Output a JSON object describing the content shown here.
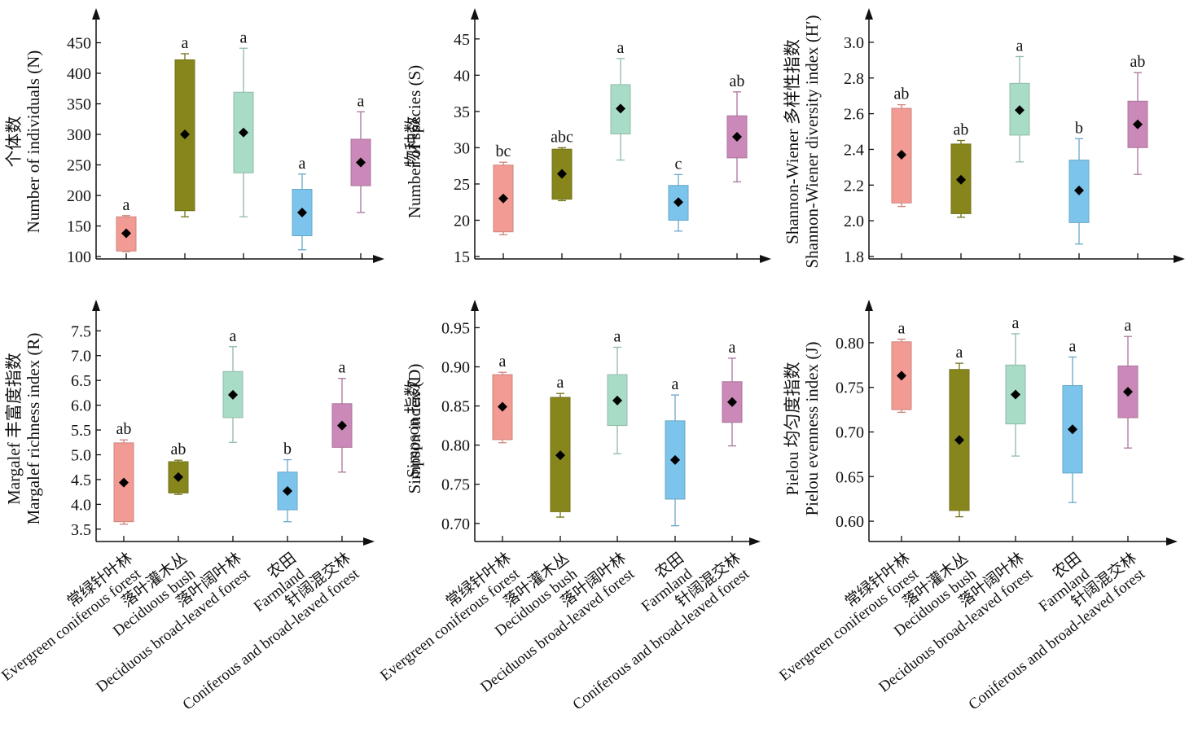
{
  "colors": {
    "Evergreen coniferous forest": "#f29b94",
    "Deciduous bush": "#86861c",
    "Deciduous broad-leaved forest": "#a9dcc6",
    "Farmland": "#7cc4eb",
    "Coniferous and broad-leaved forest": "#ca89b8"
  },
  "categories": [
    {
      "cn": "常绿针叶林",
      "en": "Evergreen coniferous forest"
    },
    {
      "cn": "落叶灌木丛",
      "en": "Deciduous bush"
    },
    {
      "cn": "落叶阔叶林",
      "en": "Deciduous broad-leaved forest"
    },
    {
      "cn": "农田",
      "en": "Farmland"
    },
    {
      "cn": "针阔混交林",
      "en": "Coniferous and broad-leaved forest"
    }
  ],
  "chart_data": [
    {
      "type": "box",
      "panel": "individuals",
      "ylabel_cn": "个体数",
      "ylabel_en": "Number of individuals (N)",
      "yticks": [
        "100",
        "150",
        "200",
        "250",
        "300",
        "350",
        "400",
        "450"
      ],
      "ylim": [
        100,
        480
      ],
      "boxes": [
        {
          "min": 108,
          "q1": 109,
          "q3": 165,
          "max": 167,
          "mean": 138,
          "sig": "a"
        },
        {
          "min": 165,
          "q1": 175,
          "q3": 422,
          "max": 432,
          "mean": 300,
          "sig": "a"
        },
        {
          "min": 165,
          "q1": 237,
          "q3": 369,
          "max": 441,
          "mean": 303,
          "sig": "a"
        },
        {
          "min": 111,
          "q1": 134,
          "q3": 210,
          "max": 235,
          "mean": 172,
          "sig": "a"
        },
        {
          "min": 172,
          "q1": 216,
          "q3": 292,
          "max": 337,
          "mean": 254,
          "sig": "a"
        }
      ]
    },
    {
      "type": "box",
      "panel": "species",
      "ylabel_cn": "物种数",
      "ylabel_en": "Number of species (S)",
      "yticks": [
        "15",
        "20",
        "25",
        "30",
        "35",
        "40",
        "45"
      ],
      "ylim": [
        15,
        47
      ],
      "boxes": [
        {
          "min": 18.0,
          "q1": 18.4,
          "q3": 27.6,
          "max": 28.0,
          "mean": 23.0,
          "sig": "bc"
        },
        {
          "min": 22.7,
          "q1": 22.9,
          "q3": 29.8,
          "max": 30.0,
          "mean": 26.4,
          "sig": "abc"
        },
        {
          "min": 28.3,
          "q1": 31.9,
          "q3": 38.7,
          "max": 42.3,
          "mean": 35.4,
          "sig": "a"
        },
        {
          "min": 18.5,
          "q1": 20.0,
          "q3": 24.8,
          "max": 26.3,
          "mean": 22.5,
          "sig": "c"
        },
        {
          "min": 25.3,
          "q1": 28.6,
          "q3": 34.4,
          "max": 37.7,
          "mean": 31.5,
          "sig": "ab"
        }
      ]
    },
    {
      "type": "box",
      "panel": "shannon",
      "ylabel_cn": "Shannon-Wiener 多样性指数",
      "ylabel_en": "Shannon-Wiener diversity index (H′)",
      "yticks": [
        "1.8",
        "2.0",
        "2.2",
        "2.4",
        "2.6",
        "2.8",
        "3.0"
      ],
      "ylim": [
        1.8,
        3.1
      ],
      "boxes": [
        {
          "min": 2.08,
          "q1": 2.1,
          "q3": 2.63,
          "max": 2.65,
          "mean": 2.37,
          "sig": "ab"
        },
        {
          "min": 2.02,
          "q1": 2.04,
          "q3": 2.43,
          "max": 2.45,
          "mean": 2.23,
          "sig": "ab"
        },
        {
          "min": 2.33,
          "q1": 2.48,
          "q3": 2.77,
          "max": 2.92,
          "mean": 2.62,
          "sig": "a"
        },
        {
          "min": 1.87,
          "q1": 1.99,
          "q3": 2.34,
          "max": 2.46,
          "mean": 2.17,
          "sig": "b"
        },
        {
          "min": 2.26,
          "q1": 2.41,
          "q3": 2.67,
          "max": 2.83,
          "mean": 2.54,
          "sig": "ab"
        }
      ]
    },
    {
      "type": "box",
      "panel": "margalef",
      "ylabel_cn": "Margalef 丰富度指数",
      "ylabel_en": "Margalef richness index (R)",
      "yticks": [
        "3.5",
        "4.0",
        "4.5",
        "5.0",
        "5.5",
        "6.0",
        "6.5",
        "7.0",
        "7.5"
      ],
      "ylim": [
        3.3,
        7.8
      ],
      "boxes": [
        {
          "min": 3.6,
          "q1": 3.65,
          "q3": 5.24,
          "max": 5.3,
          "mean": 4.44,
          "sig": "ab"
        },
        {
          "min": 4.2,
          "q1": 4.23,
          "q3": 4.86,
          "max": 4.89,
          "mean": 4.55,
          "sig": "ab"
        },
        {
          "min": 5.25,
          "q1": 5.75,
          "q3": 6.68,
          "max": 7.18,
          "mean": 6.21,
          "sig": "a"
        },
        {
          "min": 3.65,
          "q1": 3.89,
          "q3": 4.65,
          "max": 4.9,
          "mean": 4.27,
          "sig": "b"
        },
        {
          "min": 4.65,
          "q1": 5.15,
          "q3": 6.03,
          "max": 6.54,
          "mean": 5.59,
          "sig": "a"
        }
      ]
    },
    {
      "type": "box",
      "panel": "simpson",
      "ylabel_cn": "Simpson 指数",
      "ylabel_en": "Simpson index (D)",
      "yticks": [
        "0.70",
        "0.75",
        "0.80",
        "0.85",
        "0.90",
        "0.95"
      ],
      "ylim": [
        0.68,
        0.965
      ],
      "boxes": [
        {
          "min": 0.803,
          "q1": 0.807,
          "q3": 0.89,
          "max": 0.893,
          "mean": 0.849,
          "sig": "a"
        },
        {
          "min": 0.708,
          "q1": 0.715,
          "q3": 0.861,
          "max": 0.866,
          "mean": 0.787,
          "sig": "a"
        },
        {
          "min": 0.789,
          "q1": 0.825,
          "q3": 0.89,
          "max": 0.925,
          "mean": 0.857,
          "sig": "a"
        },
        {
          "min": 0.697,
          "q1": 0.731,
          "q3": 0.831,
          "max": 0.864,
          "mean": 0.781,
          "sig": "a"
        },
        {
          "min": 0.799,
          "q1": 0.829,
          "q3": 0.881,
          "max": 0.911,
          "mean": 0.855,
          "sig": "a"
        }
      ]
    },
    {
      "type": "box",
      "panel": "pielou",
      "ylabel_cn": "Pielou 均匀度指数",
      "ylabel_en": "Pielou evenness index (J)",
      "yticks": [
        "0.60",
        "0.65",
        "0.70",
        "0.75",
        "0.80"
      ],
      "ylim": [
        0.58,
        0.83
      ],
      "boxes": [
        {
          "min": 0.722,
          "q1": 0.725,
          "q3": 0.801,
          "max": 0.804,
          "mean": 0.763,
          "sig": "a"
        },
        {
          "min": 0.605,
          "q1": 0.612,
          "q3": 0.77,
          "max": 0.777,
          "mean": 0.691,
          "sig": "a"
        },
        {
          "min": 0.673,
          "q1": 0.709,
          "q3": 0.775,
          "max": 0.81,
          "mean": 0.742,
          "sig": "a"
        },
        {
          "min": 0.621,
          "q1": 0.654,
          "q3": 0.752,
          "max": 0.784,
          "mean": 0.703,
          "sig": "a"
        },
        {
          "min": 0.682,
          "q1": 0.716,
          "q3": 0.774,
          "max": 0.807,
          "mean": 0.745,
          "sig": "a"
        }
      ]
    }
  ]
}
